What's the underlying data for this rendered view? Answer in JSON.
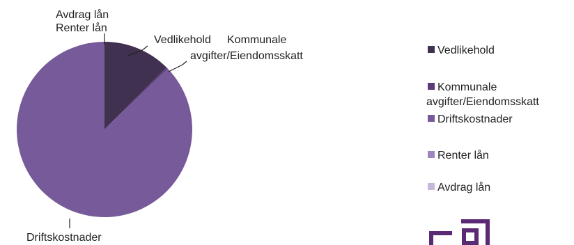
{
  "chart_data": {
    "type": "pie",
    "title": "",
    "categories": [
      "Vedlikehold",
      "Kommunale avgifter/Eiendomsskatt",
      "Driftskostnader",
      "Renter lån",
      "Avdrag lån"
    ],
    "values": [
      12.5,
      0.3,
      87.2,
      0,
      0
    ],
    "colors": [
      "#403151",
      "#5c3d79",
      "#775a99",
      "#9d86bd",
      "#c5b8d9"
    ],
    "data_labels": {
      "avdrag": "Avdrag lån",
      "renter": "Renter lån",
      "vedlikehold": "Vedlikehold",
      "kommunale_1": "Kommunale",
      "kommunale_2": "avgifter/Eiendomsskatt",
      "drift": "Driftskostnader"
    },
    "legend": {
      "position": "right",
      "items": [
        {
          "lines": [
            "Vedlikehold"
          ],
          "color": "#403151"
        },
        {
          "lines": [
            "Kommunale",
            "avgifter/Eiendomsskatt"
          ],
          "color": "#5c3d79"
        },
        {
          "lines": [
            "Driftskostnader"
          ],
          "color": "#775a99"
        },
        {
          "lines": [
            "Renter lån"
          ],
          "color": "#9d86bd"
        },
        {
          "lines": [
            "Avdrag lån"
          ],
          "color": "#c5b8d9"
        }
      ]
    },
    "logo_color": "#5b2a75"
  }
}
